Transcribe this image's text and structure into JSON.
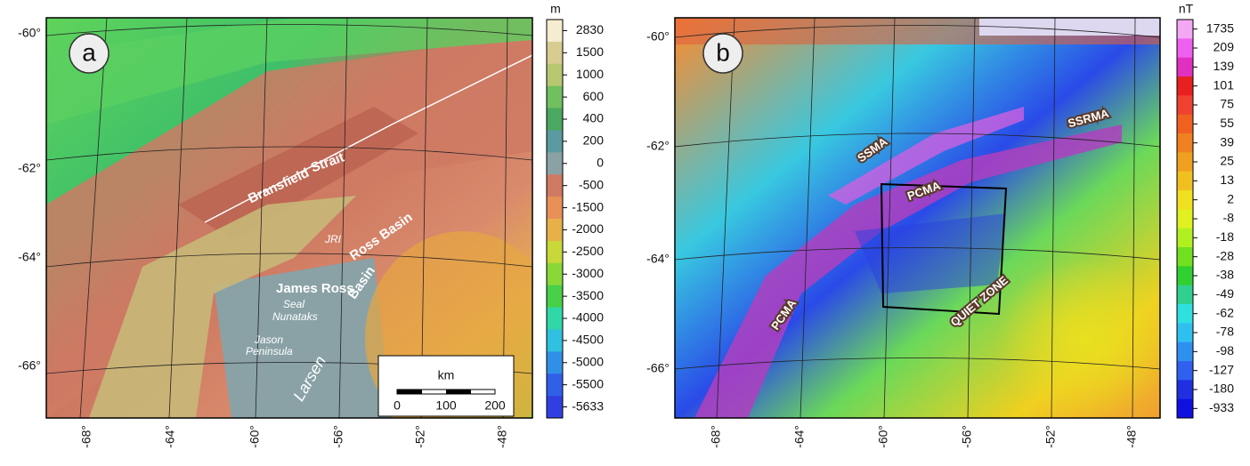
{
  "panels": [
    {
      "label": "a",
      "lat_ticks": [
        "-60°",
        "-62°",
        "-64°",
        "-66°"
      ],
      "lon_ticks": [
        "-68°",
        "-64°",
        "-60°",
        "-56°",
        "-52°",
        "-48°"
      ],
      "colorbar": {
        "unit": "m",
        "labels": [
          2830,
          1500,
          1000,
          600,
          400,
          200,
          0,
          -500,
          -1500,
          -2000,
          -2500,
          -3000,
          -3500,
          -4000,
          -4500,
          -5000,
          -5500,
          -5633
        ]
      },
      "place_names": [
        "Bransfield",
        "Strait",
        "JRI",
        "Ross Basin",
        "James Ross",
        "Basin",
        "Larsen",
        "Seal",
        "Nunataks",
        "Jason",
        "Peninsula"
      ],
      "scale_bar": {
        "unit": "km",
        "labels": [
          "0",
          "100",
          "200"
        ]
      }
    },
    {
      "label": "b",
      "lat_ticks": [
        "-60°",
        "-62°",
        "-64°",
        "-66°"
      ],
      "lon_ticks": [
        "-68°",
        "-64°",
        "-60°",
        "-56°",
        "-52°",
        "-48°"
      ],
      "colorbar": {
        "unit": "nT",
        "labels": [
          1735,
          209,
          139,
          101,
          75,
          55,
          39,
          25,
          13,
          2,
          -8,
          -18,
          -28,
          -38,
          -49,
          -62,
          -78,
          -98,
          -127,
          -180,
          -933
        ]
      },
      "anomalies": [
        "SSMA",
        "SSRMA",
        "PCMA",
        "PCMA",
        "QUIET ZONE"
      ]
    }
  ]
}
